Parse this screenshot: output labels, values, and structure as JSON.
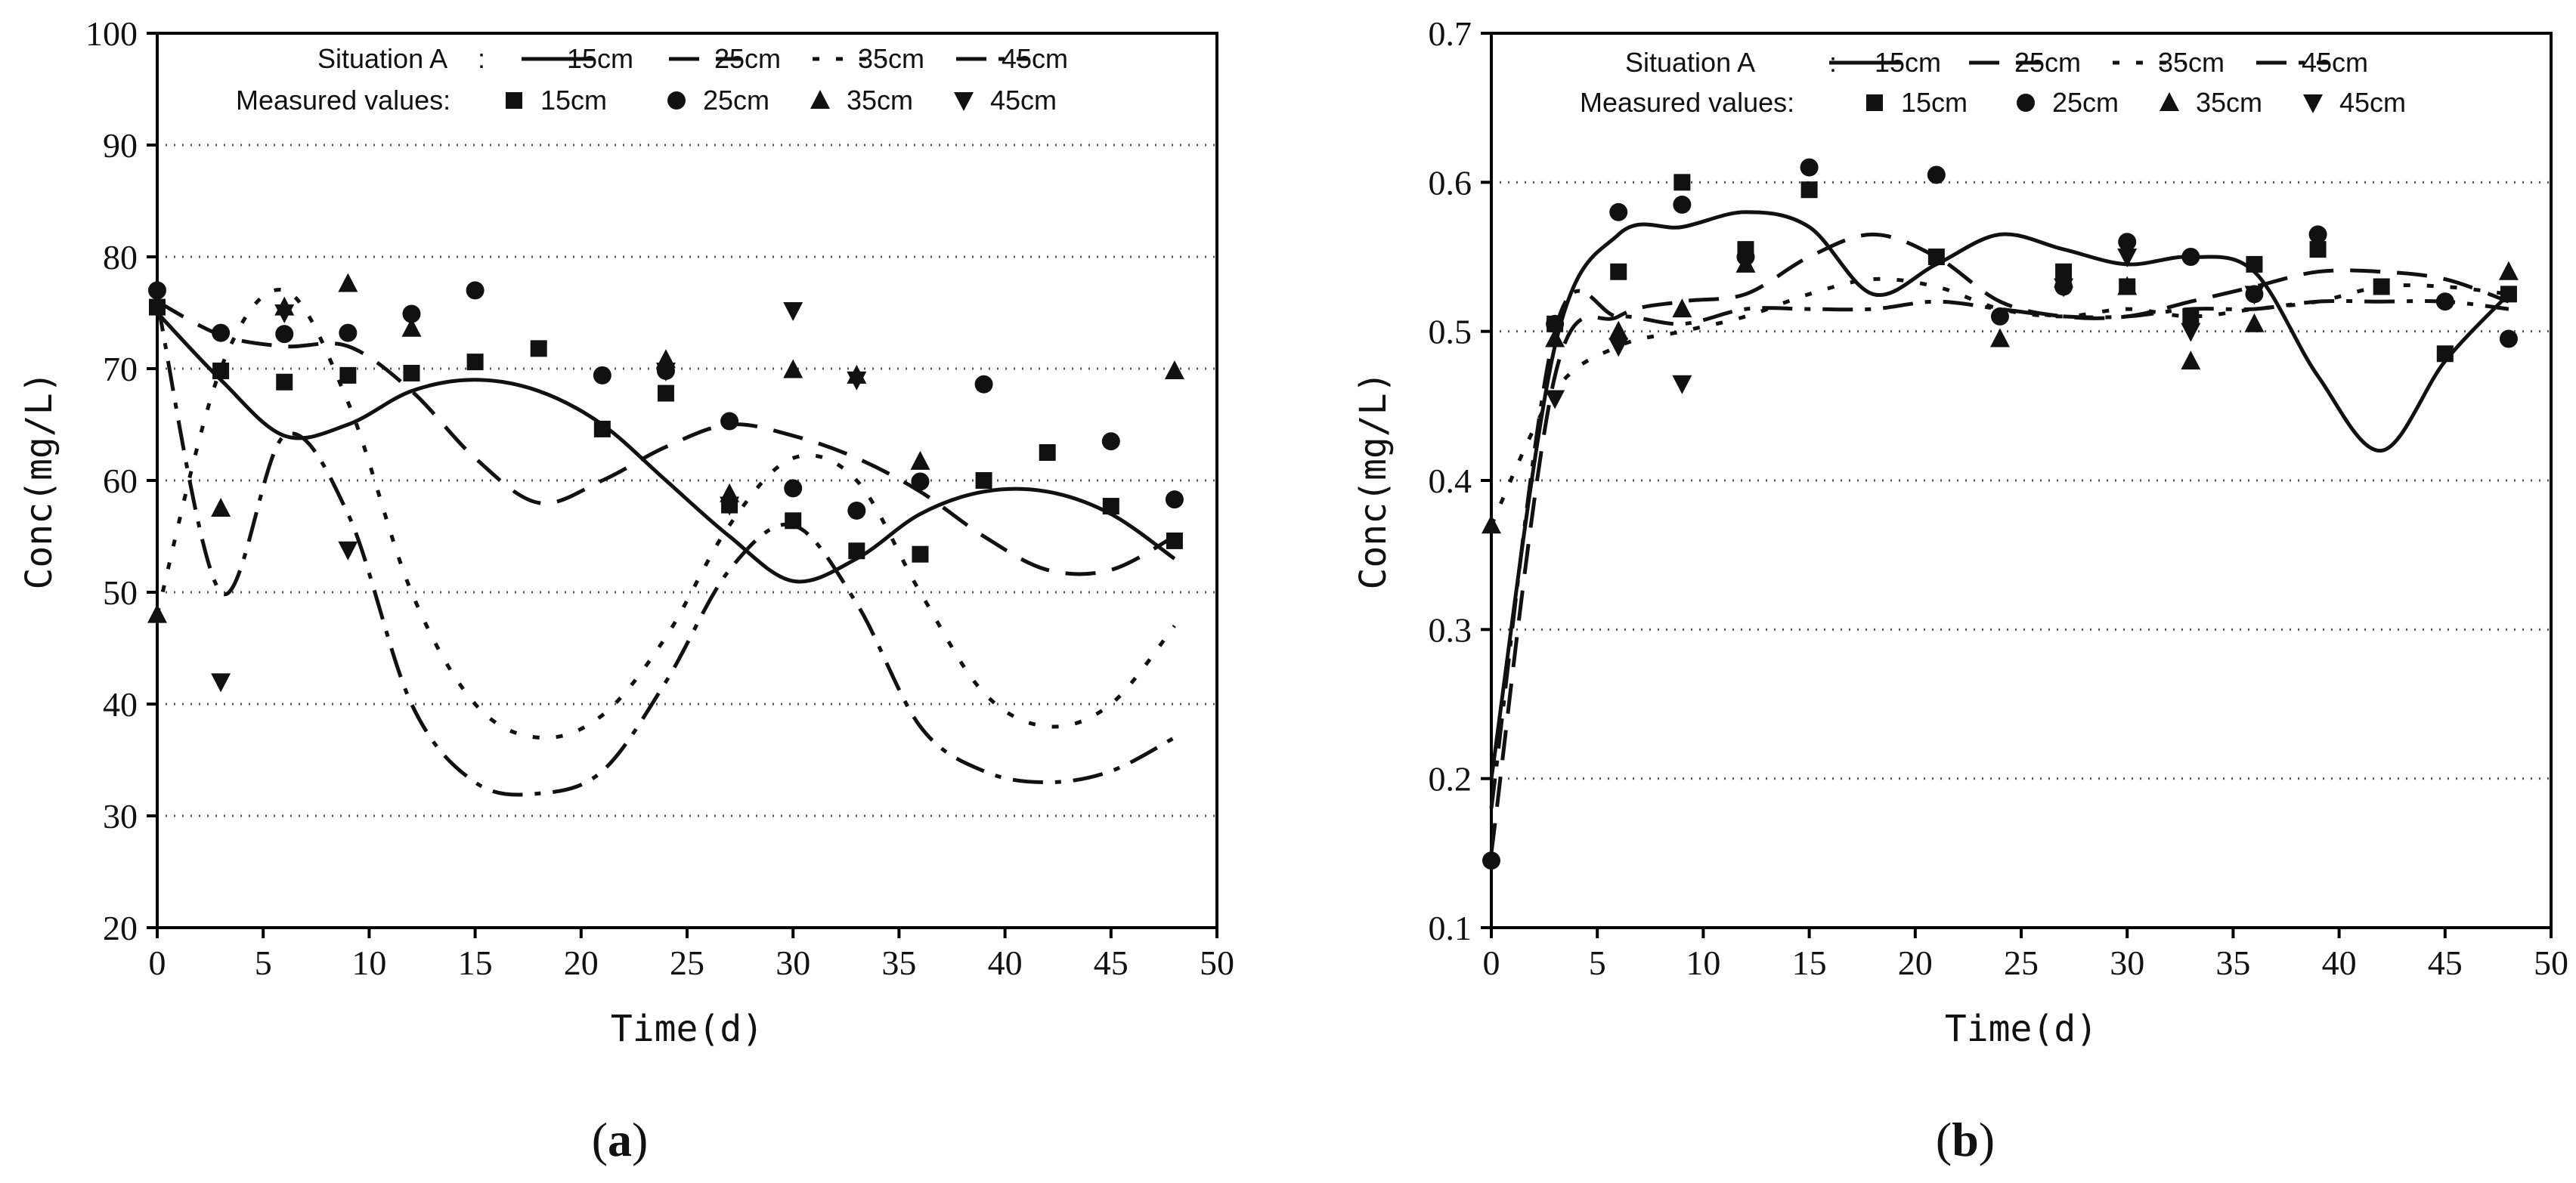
{
  "figure": {
    "labels": {
      "a": {
        "open": "(",
        "letter": "a",
        "close": ")"
      },
      "b": {
        "open": "(",
        "letter": "b",
        "close": ")"
      }
    }
  },
  "chart_data": [
    {
      "id": "a",
      "type": "line",
      "xlabel": "Time(d)",
      "ylabel": "Conc(mg/L)",
      "xlim": [
        0,
        50
      ],
      "ylim": [
        20,
        100
      ],
      "xticks": [
        0,
        5,
        10,
        15,
        20,
        25,
        30,
        35,
        40,
        45,
        50
      ],
      "yticks": [
        20,
        30,
        40,
        50,
        60,
        70,
        80,
        90,
        100
      ],
      "xtick_labels": [
        "0",
        "5",
        "10",
        "15",
        "20",
        "25",
        "30",
        "35",
        "40",
        "45",
        "50"
      ],
      "ytick_labels": [
        "20",
        "30",
        "40",
        "50",
        "60",
        "70",
        "80",
        "90",
        "100"
      ],
      "grid_y": true,
      "legend": {
        "position": "top",
        "sim_label": "Situation A",
        "sim_separator": ":",
        "meas_label": "Measured values:",
        "entries": [
          "15cm",
          "25cm",
          "35cm",
          "45cm"
        ]
      },
      "line_styles": [
        "solid",
        "dashed",
        "dotted",
        "dashdot"
      ],
      "marker_styles": [
        "square",
        "circle",
        "triangle-up",
        "triangle-down"
      ],
      "series": [
        {
          "name": "15cm",
          "x": [
            0,
            3,
            6,
            9,
            12,
            15,
            18,
            21,
            24,
            27,
            30,
            33,
            36,
            39,
            42,
            45,
            48
          ],
          "values": [
            75,
            69,
            64,
            65,
            68,
            69,
            68,
            65,
            60,
            55,
            51,
            53,
            57,
            59,
            59,
            57,
            53
          ]
        },
        {
          "name": "25cm",
          "x": [
            0,
            3,
            6,
            9,
            12,
            15,
            18,
            21,
            24,
            27,
            30,
            33,
            36,
            39,
            42,
            45,
            48
          ],
          "values": [
            76,
            73,
            72,
            72,
            68,
            62,
            58,
            60,
            63,
            65,
            64,
            62,
            59,
            55,
            52,
            52,
            55
          ]
        },
        {
          "name": "35cm",
          "x": [
            0,
            3,
            6,
            9,
            12,
            15,
            18,
            21,
            24,
            27,
            30,
            33,
            36,
            39,
            42,
            45,
            48
          ],
          "values": [
            48,
            70,
            77,
            67,
            50,
            40,
            37,
            39,
            46,
            56,
            62,
            60,
            50,
            41,
            38,
            40,
            47
          ]
        },
        {
          "name": "45cm",
          "x": [
            0,
            3,
            6,
            9,
            12,
            15,
            18,
            21,
            24,
            27,
            30,
            33,
            36,
            39,
            42,
            45,
            48
          ],
          "values": [
            76,
            50,
            64,
            57,
            40,
            33,
            32,
            34,
            42,
            52,
            56,
            49,
            38,
            34,
            33,
            34,
            37
          ]
        }
      ],
      "measured": [
        {
          "name": "15cm",
          "points": [
            [
              0,
              75.5
            ],
            [
              3,
              69.8
            ],
            [
              6,
              68.8
            ],
            [
              9,
              69.4
            ],
            [
              12,
              69.6
            ],
            [
              15,
              70.6
            ],
            [
              18,
              71.8
            ],
            [
              21,
              64.6
            ],
            [
              24,
              67.8
            ],
            [
              27,
              57.8
            ],
            [
              30,
              56.4
            ],
            [
              33,
              53.7
            ],
            [
              36,
              53.4
            ],
            [
              39,
              60.0
            ],
            [
              42,
              62.5
            ],
            [
              45,
              57.7
            ],
            [
              48,
              54.6
            ]
          ]
        },
        {
          "name": "25cm",
          "points": [
            [
              0,
              77.0
            ],
            [
              3,
              73.2
            ],
            [
              6,
              73.1
            ],
            [
              9,
              73.2
            ],
            [
              12,
              74.9
            ],
            [
              15,
              77.0
            ],
            [
              21,
              69.4
            ],
            [
              24,
              69.8
            ],
            [
              27,
              65.3
            ],
            [
              30,
              59.3
            ],
            [
              33,
              57.3
            ],
            [
              36,
              59.9
            ],
            [
              39,
              68.6
            ],
            [
              45,
              63.5
            ],
            [
              48,
              58.3
            ]
          ]
        },
        {
          "name": "35cm",
          "points": [
            [
              0,
              48.0
            ],
            [
              3,
              57.5
            ],
            [
              6,
              75.5
            ],
            [
              9,
              77.6
            ],
            [
              12,
              73.6
            ],
            [
              24,
              70.8
            ],
            [
              27,
              58.8
            ],
            [
              30,
              69.9
            ],
            [
              33,
              69.4
            ],
            [
              36,
              61.7
            ],
            [
              48,
              69.8
            ]
          ]
        },
        {
          "name": "45cm",
          "points": [
            [
              3,
              42.0
            ],
            [
              6,
              75.0
            ],
            [
              9,
              53.8
            ],
            [
              24,
              69.8
            ],
            [
              27,
              57.8
            ],
            [
              30,
              75.2
            ],
            [
              33,
              69.0
            ]
          ]
        }
      ]
    },
    {
      "id": "b",
      "type": "line",
      "xlabel": "Time(d)",
      "ylabel": "Conc(mg/L)",
      "xlim": [
        0,
        50
      ],
      "ylim": [
        0.1,
        0.7
      ],
      "xticks": [
        0,
        5,
        10,
        15,
        20,
        25,
        30,
        35,
        40,
        45,
        50
      ],
      "yticks": [
        0.1,
        0.2,
        0.3,
        0.4,
        0.5,
        0.6,
        0.7
      ],
      "xtick_labels": [
        "0",
        "5",
        "10",
        "15",
        "20",
        "25",
        "30",
        "35",
        "40",
        "45",
        "50"
      ],
      "ytick_labels": [
        "0.1",
        "0.2",
        "0.3",
        "0.4",
        "0.5",
        "0.6",
        "0.7"
      ],
      "grid_y": true,
      "legend": {
        "position": "top",
        "sim_label": "Situation A",
        "sim_separator": ":",
        "meas_label": "Measured values:",
        "entries": [
          "15cm",
          "25cm",
          "35cm",
          "45cm"
        ]
      },
      "line_styles": [
        "solid",
        "dashed",
        "dotted",
        "dashdot"
      ],
      "marker_styles": [
        "square",
        "circle",
        "triangle-up",
        "triangle-down"
      ],
      "series": [
        {
          "name": "15cm",
          "x": [
            0,
            3,
            6,
            9,
            12,
            15,
            18,
            21,
            24,
            27,
            30,
            33,
            36,
            39,
            42,
            45,
            48
          ],
          "values": [
            0.2,
            0.49,
            0.565,
            0.57,
            0.58,
            0.57,
            0.525,
            0.545,
            0.565,
            0.555,
            0.545,
            0.55,
            0.54,
            0.47,
            0.42,
            0.48,
            0.525
          ]
        },
        {
          "name": "25cm",
          "x": [
            0,
            3,
            6,
            9,
            12,
            15,
            18,
            21,
            24,
            27,
            30,
            33,
            36,
            39,
            42,
            45,
            48
          ],
          "values": [
            0.15,
            0.47,
            0.51,
            0.52,
            0.525,
            0.55,
            0.565,
            0.55,
            0.52,
            0.51,
            0.51,
            0.52,
            0.53,
            0.54,
            0.54,
            0.535,
            0.52
          ]
        },
        {
          "name": "35cm",
          "x": [
            0,
            3,
            6,
            9,
            12,
            15,
            18,
            21,
            24,
            27,
            30,
            33,
            36,
            39,
            42,
            45,
            48
          ],
          "values": [
            0.37,
            0.46,
            0.49,
            0.5,
            0.51,
            0.525,
            0.535,
            0.53,
            0.515,
            0.51,
            0.515,
            0.51,
            0.515,
            0.52,
            0.53,
            0.53,
            0.525
          ]
        },
        {
          "name": "45cm",
          "x": [
            0,
            3,
            6,
            9,
            12,
            15,
            18,
            21,
            24,
            27,
            30,
            33,
            36,
            39,
            42,
            45,
            48
          ],
          "values": [
            0.18,
            0.5,
            0.51,
            0.505,
            0.515,
            0.515,
            0.515,
            0.52,
            0.515,
            0.51,
            0.51,
            0.515,
            0.515,
            0.52,
            0.52,
            0.52,
            0.515
          ]
        }
      ],
      "measured": [
        {
          "name": "15cm",
          "points": [
            [
              3,
              0.505
            ],
            [
              6,
              0.54
            ],
            [
              9,
              0.6
            ],
            [
              12,
              0.555
            ],
            [
              15,
              0.595
            ],
            [
              21,
              0.55
            ],
            [
              27,
              0.54
            ],
            [
              30,
              0.53
            ],
            [
              33,
              0.51
            ],
            [
              36,
              0.545
            ],
            [
              39,
              0.555
            ],
            [
              42,
              0.53
            ],
            [
              45,
              0.485
            ],
            [
              48,
              0.525
            ]
          ]
        },
        {
          "name": "25cm",
          "points": [
            [
              0,
              0.145
            ],
            [
              3,
              0.505
            ],
            [
              6,
              0.58
            ],
            [
              9,
              0.585
            ],
            [
              12,
              0.55
            ],
            [
              15,
              0.61
            ],
            [
              21,
              0.605
            ],
            [
              24,
              0.51
            ],
            [
              27,
              0.53
            ],
            [
              30,
              0.56
            ],
            [
              33,
              0.55
            ],
            [
              36,
              0.525
            ],
            [
              39,
              0.565
            ],
            [
              45,
              0.52
            ],
            [
              48,
              0.495
            ]
          ]
        },
        {
          "name": "35cm",
          "points": [
            [
              0,
              0.37
            ],
            [
              3,
              0.495
            ],
            [
              6,
              0.5
            ],
            [
              9,
              0.515
            ],
            [
              12,
              0.545
            ],
            [
              24,
              0.495
            ],
            [
              27,
              0.535
            ],
            [
              30,
              0.53
            ],
            [
              33,
              0.48
            ],
            [
              36,
              0.505
            ],
            [
              48,
              0.54
            ]
          ]
        },
        {
          "name": "45cm",
          "points": [
            [
              3,
              0.455
            ],
            [
              6,
              0.49
            ],
            [
              9,
              0.465
            ],
            [
              27,
              0.53
            ],
            [
              30,
              0.55
            ],
            [
              33,
              0.5
            ],
            [
              36,
              0.525
            ]
          ]
        }
      ]
    }
  ]
}
